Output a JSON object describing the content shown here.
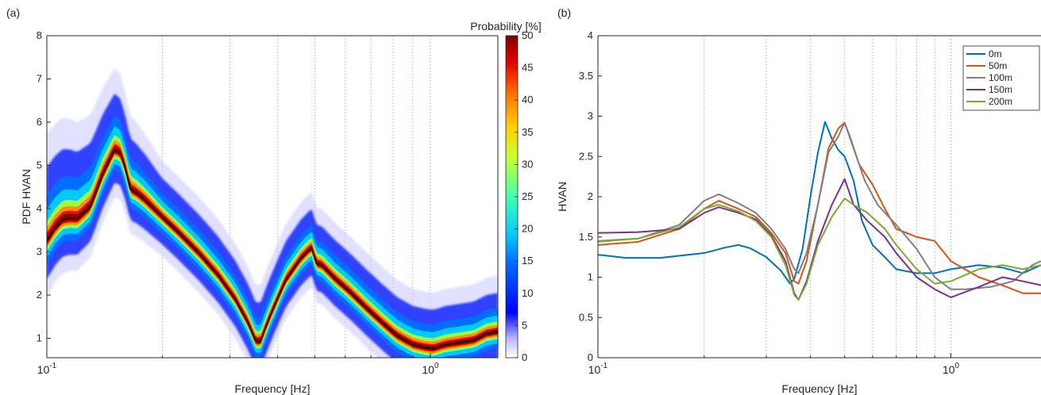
{
  "panels": {
    "a": {
      "label": "(a)"
    },
    "b": {
      "label": "(b)"
    }
  },
  "chart_data": [
    {
      "type": "heatmap",
      "panel": "(a)",
      "xlabel": "Frequency [Hz]",
      "ylabel": "PDF HVAN",
      "xscale": "log",
      "xlim": [
        0.1,
        1.5
      ],
      "ylim": [
        0.55,
        8
      ],
      "xtick_labels": [
        {
          "base": "10",
          "exp": "-1",
          "value": 0.1
        },
        {
          "base": "10",
          "exp": "0",
          "value": 1
        }
      ],
      "ytick_labels": [
        "1",
        "2",
        "3",
        "4",
        "5",
        "6",
        "7",
        "8"
      ],
      "yticks": [
        1,
        2,
        3,
        4,
        5,
        6,
        7,
        8
      ],
      "grid": "vertical minor",
      "colorbar": {
        "title": "Probability [%]",
        "range": [
          0,
          50
        ],
        "tick_labels": [
          "0",
          "5",
          "10",
          "15",
          "20",
          "25",
          "30",
          "35",
          "40",
          "45",
          "50"
        ],
        "colormap": "jet"
      },
      "median_curve": {
        "color": "#111111",
        "points": [
          [
            0.1,
            3.25
          ],
          [
            0.105,
            3.55
          ],
          [
            0.11,
            3.75
          ],
          [
            0.115,
            3.78
          ],
          [
            0.12,
            3.76
          ],
          [
            0.13,
            4.05
          ],
          [
            0.14,
            4.8
          ],
          [
            0.15,
            5.35
          ],
          [
            0.155,
            5.3
          ],
          [
            0.16,
            4.95
          ],
          [
            0.165,
            4.45
          ],
          [
            0.172,
            4.35
          ],
          [
            0.18,
            4.2
          ],
          [
            0.2,
            3.8
          ],
          [
            0.22,
            3.45
          ],
          [
            0.25,
            2.95
          ],
          [
            0.28,
            2.45
          ],
          [
            0.31,
            1.9
          ],
          [
            0.335,
            1.35
          ],
          [
            0.35,
            0.95
          ],
          [
            0.36,
            0.9
          ],
          [
            0.37,
            1.2
          ],
          [
            0.39,
            1.7
          ],
          [
            0.42,
            2.35
          ],
          [
            0.46,
            2.85
          ],
          [
            0.49,
            3.1
          ],
          [
            0.505,
            2.72
          ],
          [
            0.52,
            2.7
          ],
          [
            0.56,
            2.4
          ],
          [
            0.62,
            2.05
          ],
          [
            0.68,
            1.7
          ],
          [
            0.75,
            1.35
          ],
          [
            0.82,
            1.05
          ],
          [
            0.9,
            0.85
          ],
          [
            0.97,
            0.78
          ],
          [
            1.02,
            0.76
          ],
          [
            1.1,
            0.85
          ],
          [
            1.2,
            0.9
          ],
          [
            1.3,
            0.95
          ],
          [
            1.4,
            1.1
          ],
          [
            1.5,
            1.15
          ]
        ]
      }
    },
    {
      "type": "line",
      "panel": "(b)",
      "xlabel": "Frequency [Hz]",
      "ylabel": "HVAN",
      "xscale": "log",
      "xlim": [
        0.1,
        1.8
      ],
      "ylim": [
        0,
        4
      ],
      "xtick_labels": [
        {
          "base": "10",
          "exp": "-1",
          "value": 0.1
        },
        {
          "base": "10",
          "exp": "0",
          "value": 1
        }
      ],
      "ytick_labels": [
        "0",
        "0.5",
        "1",
        "1.5",
        "2",
        "2.5",
        "3",
        "3.5",
        "4"
      ],
      "yticks": [
        0,
        0.5,
        1,
        1.5,
        2,
        2.5,
        3,
        3.5,
        4
      ],
      "grid": "vertical minor",
      "legend": "top-right",
      "series": [
        {
          "name": "0m",
          "color": "#0072BD",
          "points": [
            [
              0.1,
              1.28
            ],
            [
              0.12,
              1.24
            ],
            [
              0.15,
              1.24
            ],
            [
              0.2,
              1.3
            ],
            [
              0.23,
              1.37
            ],
            [
              0.25,
              1.4
            ],
            [
              0.27,
              1.36
            ],
            [
              0.3,
              1.25
            ],
            [
              0.33,
              1.08
            ],
            [
              0.35,
              0.92
            ],
            [
              0.36,
              0.98
            ],
            [
              0.38,
              1.35
            ],
            [
              0.4,
              2.0
            ],
            [
              0.42,
              2.55
            ],
            [
              0.44,
              2.93
            ],
            [
              0.46,
              2.72
            ],
            [
              0.48,
              2.58
            ],
            [
              0.5,
              2.5
            ],
            [
              0.53,
              2.2
            ],
            [
              0.56,
              1.7
            ],
            [
              0.6,
              1.4
            ],
            [
              0.65,
              1.25
            ],
            [
              0.7,
              1.1
            ],
            [
              0.8,
              1.05
            ],
            [
              0.9,
              1.05
            ],
            [
              1.0,
              1.1
            ],
            [
              1.2,
              1.15
            ],
            [
              1.4,
              1.12
            ],
            [
              1.6,
              1.05
            ],
            [
              1.8,
              1.15
            ]
          ]
        },
        {
          "name": "50m",
          "color": "#D95319",
          "points": [
            [
              0.1,
              1.4
            ],
            [
              0.13,
              1.44
            ],
            [
              0.17,
              1.6
            ],
            [
              0.2,
              1.85
            ],
            [
              0.22,
              1.95
            ],
            [
              0.25,
              1.85
            ],
            [
              0.28,
              1.75
            ],
            [
              0.31,
              1.55
            ],
            [
              0.34,
              1.3
            ],
            [
              0.36,
              0.95
            ],
            [
              0.37,
              0.92
            ],
            [
              0.39,
              1.2
            ],
            [
              0.42,
              1.9
            ],
            [
              0.45,
              2.6
            ],
            [
              0.48,
              2.85
            ],
            [
              0.5,
              2.92
            ],
            [
              0.52,
              2.72
            ],
            [
              0.55,
              2.4
            ],
            [
              0.6,
              2.15
            ],
            [
              0.65,
              1.85
            ],
            [
              0.7,
              1.6
            ],
            [
              0.8,
              1.5
            ],
            [
              0.9,
              1.45
            ],
            [
              1.0,
              1.2
            ],
            [
              1.2,
              1.0
            ],
            [
              1.4,
              0.9
            ],
            [
              1.6,
              0.8
            ],
            [
              1.8,
              0.8
            ]
          ]
        },
        {
          "name": "100m",
          "color": "#808080",
          "points": [
            [
              0.1,
              1.45
            ],
            [
              0.13,
              1.48
            ],
            [
              0.17,
              1.65
            ],
            [
              0.2,
              1.95
            ],
            [
              0.22,
              2.03
            ],
            [
              0.25,
              1.92
            ],
            [
              0.28,
              1.8
            ],
            [
              0.31,
              1.6
            ],
            [
              0.34,
              1.35
            ],
            [
              0.36,
              1.1
            ],
            [
              0.37,
              1.05
            ],
            [
              0.39,
              1.3
            ],
            [
              0.42,
              1.9
            ],
            [
              0.45,
              2.55
            ],
            [
              0.48,
              2.75
            ],
            [
              0.5,
              2.92
            ],
            [
              0.53,
              2.6
            ],
            [
              0.57,
              2.2
            ],
            [
              0.62,
              1.9
            ],
            [
              0.7,
              1.65
            ],
            [
              0.8,
              1.35
            ],
            [
              0.9,
              1.0
            ],
            [
              1.0,
              0.85
            ],
            [
              1.1,
              0.85
            ],
            [
              1.3,
              0.88
            ],
            [
              1.5,
              0.95
            ],
            [
              1.7,
              1.15
            ],
            [
              1.8,
              1.2
            ]
          ]
        },
        {
          "name": "150m",
          "color": "#7E2F8E",
          "points": [
            [
              0.1,
              1.55
            ],
            [
              0.13,
              1.56
            ],
            [
              0.17,
              1.6
            ],
            [
              0.2,
              1.8
            ],
            [
              0.22,
              1.87
            ],
            [
              0.25,
              1.8
            ],
            [
              0.28,
              1.72
            ],
            [
              0.31,
              1.52
            ],
            [
              0.34,
              1.2
            ],
            [
              0.36,
              0.8
            ],
            [
              0.37,
              0.72
            ],
            [
              0.39,
              0.95
            ],
            [
              0.42,
              1.45
            ],
            [
              0.46,
              1.9
            ],
            [
              0.5,
              2.22
            ],
            [
              0.53,
              1.9
            ],
            [
              0.58,
              1.7
            ],
            [
              0.65,
              1.5
            ],
            [
              0.7,
              1.3
            ],
            [
              0.8,
              1.0
            ],
            [
              0.9,
              0.85
            ],
            [
              1.0,
              0.75
            ],
            [
              1.2,
              0.88
            ],
            [
              1.4,
              1.0
            ],
            [
              1.6,
              0.95
            ],
            [
              1.8,
              0.9
            ]
          ]
        },
        {
          "name": "200m",
          "color": "#77AC30",
          "points": [
            [
              0.1,
              1.44
            ],
            [
              0.13,
              1.48
            ],
            [
              0.17,
              1.62
            ],
            [
              0.2,
              1.85
            ],
            [
              0.22,
              1.9
            ],
            [
              0.25,
              1.82
            ],
            [
              0.28,
              1.7
            ],
            [
              0.31,
              1.5
            ],
            [
              0.34,
              1.15
            ],
            [
              0.36,
              0.78
            ],
            [
              0.37,
              0.72
            ],
            [
              0.39,
              0.92
            ],
            [
              0.42,
              1.4
            ],
            [
              0.46,
              1.75
            ],
            [
              0.5,
              1.98
            ],
            [
              0.53,
              1.9
            ],
            [
              0.58,
              1.8
            ],
            [
              0.65,
              1.6
            ],
            [
              0.7,
              1.4
            ],
            [
              0.8,
              1.1
            ],
            [
              0.9,
              0.92
            ],
            [
              1.0,
              0.95
            ],
            [
              1.2,
              1.1
            ],
            [
              1.4,
              1.15
            ],
            [
              1.6,
              1.1
            ],
            [
              1.8,
              1.15
            ]
          ]
        }
      ]
    }
  ]
}
